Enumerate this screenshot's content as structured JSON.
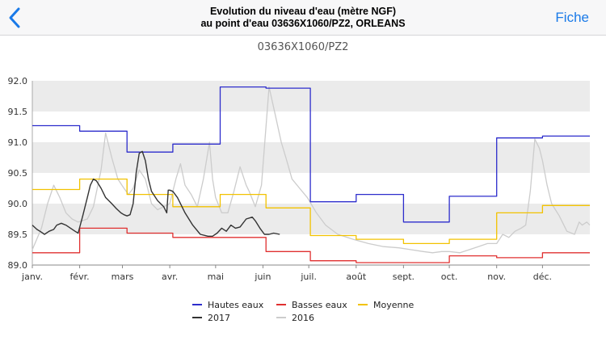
{
  "navbar": {
    "back_icon": "chevron-left-icon",
    "title_line1": "Evolution du niveau d'eau (mètre NGF)",
    "title_line2": "au point d'eau 03636X1060/PZ2, ORLEANS",
    "right_button": "Fiche",
    "accent": "#1a7ae8"
  },
  "chart_data": {
    "type": "line",
    "title": "03636X1060/PZ2",
    "xlabel": "",
    "ylabel": "",
    "xlim": [
      0,
      365
    ],
    "ylim": [
      89.0,
      92.0
    ],
    "y_ticks": [
      "92.0",
      "91.5",
      "91.0",
      "90.5",
      "90.0",
      "89.5",
      "89.0"
    ],
    "y_tick_values": [
      92.0,
      91.5,
      91.0,
      90.5,
      90.0,
      89.5,
      89.0
    ],
    "x_ticks": [
      "janv.",
      "févr.",
      "mars",
      "avr.",
      "mai",
      "juin",
      "juil.",
      "août",
      "sept.",
      "oct.",
      "nov.",
      "déc."
    ],
    "x_tick_days": [
      0,
      31,
      59,
      90,
      120,
      151,
      181,
      212,
      243,
      273,
      304,
      334
    ],
    "grid": true,
    "legend_position": "bottom",
    "series": [
      {
        "name": "Hautes eaux",
        "color": "#2d2dcc",
        "step": true,
        "x": [
          0,
          31,
          31,
          62,
          62,
          92,
          92,
          123,
          123,
          153,
          153,
          155,
          155,
          182,
          182,
          212,
          212,
          243,
          243,
          273,
          273,
          304,
          304,
          334,
          334,
          365
        ],
        "y": [
          91.27,
          91.27,
          91.18,
          91.18,
          90.84,
          90.84,
          90.97,
          90.97,
          91.9,
          91.9,
          91.88,
          91.88,
          91.88,
          91.88,
          90.03,
          90.03,
          90.15,
          90.15,
          89.7,
          89.7,
          90.12,
          90.12,
          91.07,
          91.07,
          91.1,
          91.1
        ]
      },
      {
        "name": "Basses eaux",
        "color": "#e03030",
        "step": true,
        "x": [
          0,
          31,
          31,
          62,
          62,
          92,
          92,
          153,
          153,
          182,
          182,
          212,
          212,
          273,
          273,
          304,
          304,
          334,
          334,
          365
        ],
        "y": [
          89.2,
          89.2,
          89.6,
          89.6,
          89.52,
          89.52,
          89.45,
          89.45,
          89.22,
          89.22,
          89.07,
          89.07,
          89.04,
          89.04,
          89.15,
          89.15,
          89.12,
          89.12,
          89.2,
          89.2
        ]
      },
      {
        "name": "Moyenne",
        "color": "#f2c200",
        "step": true,
        "x": [
          0,
          31,
          31,
          62,
          62,
          92,
          92,
          123,
          123,
          153,
          153,
          182,
          182,
          212,
          212,
          243,
          243,
          273,
          273,
          304,
          304,
          334,
          334,
          365
        ],
        "y": [
          90.23,
          90.23,
          90.4,
          90.4,
          90.15,
          90.15,
          89.95,
          89.95,
          90.15,
          90.15,
          89.93,
          89.93,
          89.48,
          89.48,
          89.42,
          89.42,
          89.35,
          89.35,
          89.42,
          89.42,
          89.85,
          89.85,
          89.97,
          89.97
        ]
      },
      {
        "name": "2017",
        "color": "#333333",
        "step": false,
        "x": [
          0,
          3,
          5,
          8,
          11,
          14,
          16,
          19,
          22,
          25,
          28,
          30,
          33,
          36,
          38,
          40,
          42,
          45,
          48,
          52,
          55,
          58,
          60,
          62,
          64,
          66,
          68,
          70,
          72,
          74,
          76,
          78,
          82,
          86,
          88,
          89,
          90,
          92,
          95,
          100,
          105,
          110,
          115,
          118,
          121,
          124,
          127,
          130,
          133,
          136,
          140,
          144,
          146,
          149,
          152,
          155,
          158,
          162
        ],
        "y": [
          89.65,
          89.58,
          89.55,
          89.5,
          89.55,
          89.58,
          89.65,
          89.68,
          89.65,
          89.6,
          89.55,
          89.52,
          89.8,
          90.1,
          90.3,
          90.4,
          90.37,
          90.25,
          90.1,
          90.0,
          89.92,
          89.85,
          89.82,
          89.8,
          89.82,
          90.0,
          90.5,
          90.82,
          90.85,
          90.7,
          90.4,
          90.2,
          90.05,
          89.95,
          89.85,
          90.22,
          90.22,
          90.2,
          90.1,
          89.85,
          89.65,
          89.5,
          89.47,
          89.47,
          89.52,
          89.6,
          89.55,
          89.65,
          89.6,
          89.62,
          89.75,
          89.78,
          89.72,
          89.6,
          89.5,
          89.5,
          89.52,
          89.5
        ]
      },
      {
        "name": "2016",
        "color": "#cccccc",
        "step": false,
        "x": [
          0,
          6,
          10,
          14,
          18,
          22,
          26,
          30,
          36,
          40,
          45,
          48,
          52,
          56,
          60,
          63,
          66,
          70,
          74,
          78,
          82,
          86,
          90,
          94,
          97,
          100,
          104,
          108,
          112,
          116,
          118,
          120,
          124,
          128,
          132,
          136,
          140,
          142,
          146,
          150,
          155,
          159,
          163,
          166,
          170,
          175,
          180,
          186,
          192,
          200,
          210,
          220,
          230,
          240,
          248,
          256,
          262,
          268,
          273,
          280,
          286,
          292,
          298,
          304,
          308,
          312,
          316,
          320,
          323,
          326,
          329,
          332,
          334,
          337,
          340,
          345,
          350,
          355,
          358,
          360,
          363,
          365
        ],
        "y": [
          89.25,
          89.6,
          90.0,
          90.3,
          90.1,
          89.85,
          89.75,
          89.7,
          89.75,
          89.95,
          90.55,
          91.15,
          90.75,
          90.4,
          90.25,
          90.15,
          90.25,
          90.55,
          90.4,
          90.0,
          89.9,
          89.95,
          90.0,
          90.4,
          90.65,
          90.3,
          90.15,
          89.95,
          90.4,
          91.0,
          90.4,
          90.1,
          89.85,
          89.85,
          90.2,
          90.6,
          90.3,
          90.2,
          89.95,
          90.3,
          91.9,
          91.45,
          91.0,
          90.75,
          90.4,
          90.25,
          90.1,
          89.85,
          89.65,
          89.5,
          89.42,
          89.35,
          89.3,
          89.28,
          89.25,
          89.22,
          89.2,
          89.22,
          89.22,
          89.2,
          89.25,
          89.3,
          89.35,
          89.35,
          89.5,
          89.45,
          89.55,
          89.6,
          89.65,
          90.2,
          91.05,
          90.9,
          90.7,
          90.3,
          90.0,
          89.8,
          89.55,
          89.5,
          89.7,
          89.65,
          89.7,
          89.65
        ]
      }
    ]
  }
}
